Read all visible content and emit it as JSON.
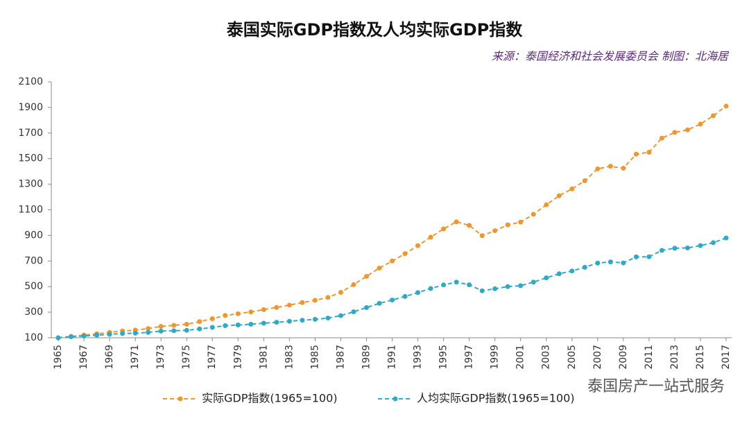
{
  "chart_data": {
    "type": "line",
    "title": "泰国实际GDP指数及人均实际GDP指数",
    "subtitle": "来源：泰国经济和社会发展委员会  制图：北海居",
    "watermark": "泰国房产一站式服务",
    "x": [
      1965,
      1966,
      1967,
      1968,
      1969,
      1970,
      1971,
      1972,
      1973,
      1974,
      1975,
      1976,
      1977,
      1978,
      1979,
      1980,
      1981,
      1982,
      1983,
      1984,
      1985,
      1986,
      1987,
      1988,
      1989,
      1990,
      1991,
      1992,
      1993,
      1994,
      1995,
      1996,
      1997,
      1998,
      1999,
      2000,
      2001,
      2002,
      2003,
      2004,
      2005,
      2006,
      2007,
      2008,
      2009,
      2010,
      2011,
      2012,
      2013,
      2014,
      2015,
      2016,
      2017
    ],
    "series": [
      {
        "name": "实际GDP指数(1965=100)",
        "color": "#f0962e",
        "values": [
          100,
          111,
          121,
          131,
          142,
          153,
          160,
          172,
          189,
          197,
          206,
          226,
          249,
          274,
          288,
          302,
          320,
          337,
          355,
          375,
          393,
          415,
          455,
          515,
          580,
          645,
          700,
          757,
          820,
          886,
          951,
          1006,
          978,
          898,
          937,
          982,
          1004,
          1065,
          1139,
          1210,
          1263,
          1327,
          1420,
          1440,
          1425,
          1535,
          1550,
          1660,
          1705,
          1725,
          1770,
          1835,
          1910
        ]
      },
      {
        "name": "人均实际GDP指数(1965=100)",
        "color": "#2eaac8",
        "values": [
          100,
          108,
          114,
          120,
          127,
          133,
          136,
          142,
          152,
          155,
          158,
          169,
          181,
          195,
          200,
          206,
          214,
          221,
          229,
          237,
          244,
          254,
          273,
          303,
          336,
          369,
          395,
          423,
          453,
          485,
          513,
          535,
          514,
          467,
          483,
          500,
          507,
          535,
          568,
          600,
          622,
          651,
          684,
          693,
          685,
          732,
          733,
          783,
          800,
          802,
          820,
          843,
          880
        ]
      }
    ],
    "xlim": [
      1965,
      2017
    ],
    "xticks": [
      1965,
      1967,
      1969,
      1971,
      1973,
      1975,
      1977,
      1979,
      1981,
      1983,
      1985,
      1987,
      1989,
      1991,
      1993,
      1995,
      1997,
      1999,
      2001,
      2003,
      2005,
      2007,
      2009,
      2011,
      2013,
      2015,
      2017
    ],
    "ylim": [
      100,
      2100
    ],
    "yticks": [
      100,
      300,
      500,
      700,
      900,
      1100,
      1300,
      1500,
      1700,
      1900,
      2100
    ],
    "grid": false
  }
}
